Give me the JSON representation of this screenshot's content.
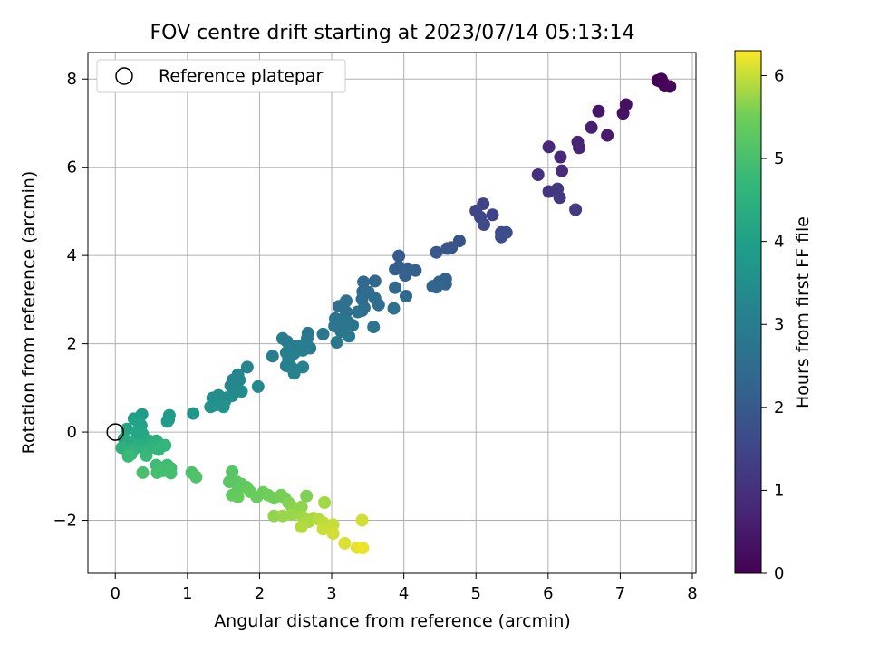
{
  "chart_data": {
    "type": "scatter",
    "title": "FOV centre drift starting at 2023/07/14 05:13:14",
    "xlabel": "Angular distance from reference (arcmin)",
    "ylabel": "Rotation from reference (arcmin)",
    "xlim": [
      -0.38,
      8.05
    ],
    "ylim": [
      -3.2,
      8.6
    ],
    "xticks": [
      0,
      1,
      2,
      3,
      4,
      5,
      6,
      7,
      8
    ],
    "yticks": [
      -2,
      0,
      2,
      4,
      6,
      8
    ],
    "grid": true,
    "legend": {
      "placement": "top-left",
      "entries": [
        "Reference platepar"
      ]
    },
    "reference_point": {
      "x": 0,
      "y": 0,
      "label": "Reference platepar"
    },
    "colorbar": {
      "label": "Hours from first FF file",
      "range": [
        0,
        6.3
      ],
      "ticks": [
        0,
        1,
        2,
        3,
        4,
        5,
        6
      ],
      "colormap": "viridis"
    },
    "series": [
      {
        "marker": "filled-circle",
        "points": [
          {
            "x": 7.52,
            "y": 7.97,
            "c": 0.02
          },
          {
            "x": 7.57,
            "y": 8.0,
            "c": 0.05
          },
          {
            "x": 7.6,
            "y": 7.9,
            "c": 0.08
          },
          {
            "x": 7.62,
            "y": 7.84,
            "c": 0.1
          },
          {
            "x": 7.69,
            "y": 7.83,
            "c": 0.12
          },
          {
            "x": 7.55,
            "y": 7.95,
            "c": 0.04
          },
          {
            "x": 7.08,
            "y": 7.42,
            "c": 0.3
          },
          {
            "x": 7.04,
            "y": 7.22,
            "c": 0.35
          },
          {
            "x": 6.7,
            "y": 7.27,
            "c": 0.45
          },
          {
            "x": 6.82,
            "y": 6.72,
            "c": 0.55
          },
          {
            "x": 6.6,
            "y": 6.9,
            "c": 0.6
          },
          {
            "x": 6.41,
            "y": 6.57,
            "c": 0.7
          },
          {
            "x": 6.43,
            "y": 6.44,
            "c": 0.75
          },
          {
            "x": 6.17,
            "y": 6.23,
            "c": 0.8
          },
          {
            "x": 6.01,
            "y": 6.46,
            "c": 0.85
          },
          {
            "x": 6.19,
            "y": 5.92,
            "c": 0.9
          },
          {
            "x": 5.86,
            "y": 5.83,
            "c": 1.0
          },
          {
            "x": 6.01,
            "y": 5.45,
            "c": 1.1
          },
          {
            "x": 6.13,
            "y": 5.51,
            "c": 1.15
          },
          {
            "x": 6.16,
            "y": 5.31,
            "c": 1.2
          },
          {
            "x": 6.38,
            "y": 5.04,
            "c": 1.25
          },
          {
            "x": 5.1,
            "y": 5.17,
            "c": 1.4
          },
          {
            "x": 5.23,
            "y": 4.92,
            "c": 1.45
          },
          {
            "x": 5.0,
            "y": 5.01,
            "c": 1.5
          },
          {
            "x": 5.06,
            "y": 4.87,
            "c": 1.55
          },
          {
            "x": 5.11,
            "y": 4.7,
            "c": 1.6
          },
          {
            "x": 5.35,
            "y": 4.52,
            "c": 1.65
          },
          {
            "x": 5.42,
            "y": 4.52,
            "c": 1.7
          },
          {
            "x": 5.35,
            "y": 4.42,
            "c": 1.75
          },
          {
            "x": 4.77,
            "y": 4.33,
            "c": 1.8
          },
          {
            "x": 4.66,
            "y": 4.18,
            "c": 1.85
          },
          {
            "x": 4.6,
            "y": 4.16,
            "c": 1.9
          },
          {
            "x": 4.45,
            "y": 4.07,
            "c": 1.95
          },
          {
            "x": 3.93,
            "y": 3.99,
            "c": 2.0
          },
          {
            "x": 3.93,
            "y": 3.74,
            "c": 2.05
          },
          {
            "x": 3.88,
            "y": 3.69,
            "c": 2.1
          },
          {
            "x": 4.05,
            "y": 3.7,
            "c": 2.1
          },
          {
            "x": 4.16,
            "y": 3.66,
            "c": 2.15
          },
          {
            "x": 4.02,
            "y": 3.55,
            "c": 2.2
          },
          {
            "x": 4.58,
            "y": 3.47,
            "c": 2.2
          },
          {
            "x": 4.49,
            "y": 3.4,
            "c": 2.25
          },
          {
            "x": 4.58,
            "y": 3.35,
            "c": 2.25
          },
          {
            "x": 4.4,
            "y": 3.3,
            "c": 2.3
          },
          {
            "x": 4.45,
            "y": 3.28,
            "c": 2.3
          },
          {
            "x": 3.44,
            "y": 3.4,
            "c": 2.35
          },
          {
            "x": 3.6,
            "y": 3.42,
            "c": 2.35
          },
          {
            "x": 3.88,
            "y": 3.27,
            "c": 2.4
          },
          {
            "x": 3.43,
            "y": 3.18,
            "c": 2.4
          },
          {
            "x": 3.51,
            "y": 3.17,
            "c": 2.45
          },
          {
            "x": 4.03,
            "y": 3.08,
            "c": 2.45
          },
          {
            "x": 3.6,
            "y": 3.03,
            "c": 2.5
          },
          {
            "x": 3.42,
            "y": 3.01,
            "c": 2.5
          },
          {
            "x": 3.65,
            "y": 2.88,
            "c": 2.55
          },
          {
            "x": 3.45,
            "y": 2.82,
            "c": 2.55
          },
          {
            "x": 3.86,
            "y": 2.8,
            "c": 2.6
          },
          {
            "x": 3.2,
            "y": 2.97,
            "c": 2.6
          },
          {
            "x": 3.1,
            "y": 2.85,
            "c": 2.6
          },
          {
            "x": 3.2,
            "y": 2.72,
            "c": 2.65
          },
          {
            "x": 3.36,
            "y": 2.72,
            "c": 2.65
          },
          {
            "x": 3.42,
            "y": 2.75,
            "c": 2.65
          },
          {
            "x": 3.05,
            "y": 2.57,
            "c": 2.7
          },
          {
            "x": 3.14,
            "y": 2.55,
            "c": 2.7
          },
          {
            "x": 3.22,
            "y": 2.5,
            "c": 2.7
          },
          {
            "x": 3.1,
            "y": 2.42,
            "c": 2.75
          },
          {
            "x": 3.04,
            "y": 2.4,
            "c": 2.75
          },
          {
            "x": 3.18,
            "y": 2.35,
            "c": 2.75
          },
          {
            "x": 3.29,
            "y": 2.42,
            "c": 2.8
          },
          {
            "x": 3.58,
            "y": 2.38,
            "c": 2.8
          },
          {
            "x": 3.13,
            "y": 2.28,
            "c": 2.8
          },
          {
            "x": 2.88,
            "y": 2.22,
            "c": 2.85
          },
          {
            "x": 3.24,
            "y": 2.17,
            "c": 2.85
          },
          {
            "x": 3.07,
            "y": 2.03,
            "c": 2.85
          },
          {
            "x": 2.67,
            "y": 2.24,
            "c": 2.9
          },
          {
            "x": 2.66,
            "y": 2.12,
            "c": 2.9
          },
          {
            "x": 2.32,
            "y": 2.12,
            "c": 2.95
          },
          {
            "x": 2.38,
            "y": 2.05,
            "c": 2.95
          },
          {
            "x": 2.42,
            "y": 1.97,
            "c": 2.95
          },
          {
            "x": 2.55,
            "y": 1.95,
            "c": 3.0
          },
          {
            "x": 2.6,
            "y": 1.85,
            "c": 3.0
          },
          {
            "x": 2.7,
            "y": 1.9,
            "c": 3.0
          },
          {
            "x": 2.37,
            "y": 1.8,
            "c": 3.05
          },
          {
            "x": 2.48,
            "y": 1.78,
            "c": 3.05
          },
          {
            "x": 2.18,
            "y": 1.72,
            "c": 3.05
          },
          {
            "x": 2.4,
            "y": 1.65,
            "c": 3.1
          },
          {
            "x": 2.37,
            "y": 1.5,
            "c": 3.1
          },
          {
            "x": 2.45,
            "y": 1.45,
            "c": 3.1
          },
          {
            "x": 2.6,
            "y": 1.47,
            "c": 3.15
          },
          {
            "x": 2.48,
            "y": 1.33,
            "c": 3.15
          },
          {
            "x": 1.83,
            "y": 1.47,
            "c": 3.2
          },
          {
            "x": 1.7,
            "y": 1.3,
            "c": 3.2
          },
          {
            "x": 1.63,
            "y": 1.18,
            "c": 3.25
          },
          {
            "x": 1.72,
            "y": 1.18,
            "c": 3.25
          },
          {
            "x": 1.6,
            "y": 1.05,
            "c": 3.3
          },
          {
            "x": 1.66,
            "y": 1.02,
            "c": 3.3
          },
          {
            "x": 1.98,
            "y": 1.03,
            "c": 3.35
          },
          {
            "x": 1.65,
            "y": 0.93,
            "c": 3.35
          },
          {
            "x": 1.75,
            "y": 0.92,
            "c": 3.4
          },
          {
            "x": 1.62,
            "y": 0.82,
            "c": 3.4
          },
          {
            "x": 1.55,
            "y": 0.78,
            "c": 3.45
          },
          {
            "x": 1.43,
            "y": 0.83,
            "c": 3.45
          },
          {
            "x": 1.35,
            "y": 0.77,
            "c": 3.5
          },
          {
            "x": 1.52,
            "y": 0.7,
            "c": 3.5
          },
          {
            "x": 1.4,
            "y": 0.62,
            "c": 3.55
          },
          {
            "x": 1.36,
            "y": 0.6,
            "c": 3.55
          },
          {
            "x": 1.5,
            "y": 0.57,
            "c": 3.6
          },
          {
            "x": 1.32,
            "y": 0.57,
            "c": 3.6
          },
          {
            "x": 1.08,
            "y": 0.42,
            "c": 3.7
          },
          {
            "x": 0.75,
            "y": 0.38,
            "c": 3.8
          },
          {
            "x": 0.37,
            "y": 0.4,
            "c": 3.85
          },
          {
            "x": 0.74,
            "y": 0.28,
            "c": 3.9
          },
          {
            "x": 0.72,
            "y": 0.24,
            "c": 3.9
          },
          {
            "x": 0.26,
            "y": 0.3,
            "c": 4.0
          },
          {
            "x": 0.32,
            "y": 0.22,
            "c": 4.05
          },
          {
            "x": 0.36,
            "y": 0.15,
            "c": 4.05
          },
          {
            "x": 0.16,
            "y": 0.07,
            "c": 4.1
          },
          {
            "x": 0.3,
            "y": 0.0,
            "c": 4.15
          },
          {
            "x": 0.38,
            "y": -0.05,
            "c": 4.2
          },
          {
            "x": 0.12,
            "y": -0.15,
            "c": 4.25
          },
          {
            "x": 0.2,
            "y": -0.22,
            "c": 4.3
          },
          {
            "x": 0.47,
            "y": -0.2,
            "c": 4.35
          },
          {
            "x": 0.28,
            "y": -0.27,
            "c": 4.4
          },
          {
            "x": 0.35,
            "y": -0.3,
            "c": 4.4
          },
          {
            "x": 0.57,
            "y": -0.2,
            "c": 4.45
          },
          {
            "x": 0.6,
            "y": -0.26,
            "c": 4.5
          },
          {
            "x": 0.09,
            "y": -0.36,
            "c": 4.5
          },
          {
            "x": 0.25,
            "y": -0.4,
            "c": 4.55
          },
          {
            "x": 0.41,
            "y": -0.42,
            "c": 4.6
          },
          {
            "x": 0.5,
            "y": -0.35,
            "c": 4.6
          },
          {
            "x": 0.69,
            "y": -0.3,
            "c": 4.65
          },
          {
            "x": 0.6,
            "y": -0.4,
            "c": 4.7
          },
          {
            "x": 0.22,
            "y": -0.5,
            "c": 4.7
          },
          {
            "x": 0.43,
            "y": -0.53,
            "c": 4.75
          },
          {
            "x": 0.18,
            "y": -0.55,
            "c": 4.8
          },
          {
            "x": 0.57,
            "y": -0.75,
            "c": 4.85
          },
          {
            "x": 0.72,
            "y": -0.75,
            "c": 4.85
          },
          {
            "x": 0.77,
            "y": -0.82,
            "c": 4.9
          },
          {
            "x": 0.66,
            "y": -0.88,
            "c": 4.9
          },
          {
            "x": 0.77,
            "y": -0.93,
            "c": 4.95
          },
          {
            "x": 0.58,
            "y": -0.92,
            "c": 4.95
          },
          {
            "x": 0.38,
            "y": -0.92,
            "c": 5.0
          },
          {
            "x": 1.06,
            "y": -0.92,
            "c": 5.05
          },
          {
            "x": 1.12,
            "y": -1.02,
            "c": 5.1
          },
          {
            "x": 1.62,
            "y": -0.9,
            "c": 5.2
          },
          {
            "x": 1.58,
            "y": -1.13,
            "c": 5.25
          },
          {
            "x": 1.68,
            "y": -1.13,
            "c": 5.25
          },
          {
            "x": 1.75,
            "y": -1.18,
            "c": 5.3
          },
          {
            "x": 1.7,
            "y": -1.3,
            "c": 5.3
          },
          {
            "x": 1.82,
            "y": -1.25,
            "c": 5.35
          },
          {
            "x": 1.62,
            "y": -1.43,
            "c": 5.35
          },
          {
            "x": 1.7,
            "y": -1.47,
            "c": 5.4
          },
          {
            "x": 1.87,
            "y": -1.35,
            "c": 5.4
          },
          {
            "x": 1.96,
            "y": -1.47,
            "c": 5.45
          },
          {
            "x": 2.05,
            "y": -1.37,
            "c": 5.45
          },
          {
            "x": 2.12,
            "y": -1.43,
            "c": 5.5
          },
          {
            "x": 2.2,
            "y": -1.5,
            "c": 5.5
          },
          {
            "x": 2.3,
            "y": -1.43,
            "c": 5.55
          },
          {
            "x": 2.35,
            "y": -1.5,
            "c": 5.55
          },
          {
            "x": 2.65,
            "y": -1.45,
            "c": 5.6
          },
          {
            "x": 2.4,
            "y": -1.6,
            "c": 5.6
          },
          {
            "x": 2.45,
            "y": -1.7,
            "c": 5.65
          },
          {
            "x": 2.52,
            "y": -1.77,
            "c": 5.65
          },
          {
            "x": 2.58,
            "y": -1.7,
            "c": 5.7
          },
          {
            "x": 2.2,
            "y": -1.9,
            "c": 5.7
          },
          {
            "x": 2.32,
            "y": -1.9,
            "c": 5.75
          },
          {
            "x": 2.45,
            "y": -1.87,
            "c": 5.75
          },
          {
            "x": 2.6,
            "y": -1.93,
            "c": 5.8
          },
          {
            "x": 2.9,
            "y": -1.6,
            "c": 5.8
          },
          {
            "x": 2.68,
            "y": -2.03,
            "c": 5.85
          },
          {
            "x": 2.75,
            "y": -1.95,
            "c": 5.85
          },
          {
            "x": 2.82,
            "y": -1.98,
            "c": 5.9
          },
          {
            "x": 2.58,
            "y": -2.15,
            "c": 5.9
          },
          {
            "x": 2.88,
            "y": -2.05,
            "c": 5.95
          },
          {
            "x": 2.9,
            "y": -2.1,
            "c": 5.95
          },
          {
            "x": 2.88,
            "y": -2.2,
            "c": 6.0
          },
          {
            "x": 3.02,
            "y": -2.1,
            "c": 6.0
          },
          {
            "x": 3.02,
            "y": -2.3,
            "c": 6.05
          },
          {
            "x": 3.42,
            "y": -2.0,
            "c": 6.05
          },
          {
            "x": 3.18,
            "y": -2.52,
            "c": 6.1
          },
          {
            "x": 3.35,
            "y": -2.62,
            "c": 6.15
          },
          {
            "x": 3.43,
            "y": -2.63,
            "c": 6.2
          }
        ]
      }
    ]
  }
}
